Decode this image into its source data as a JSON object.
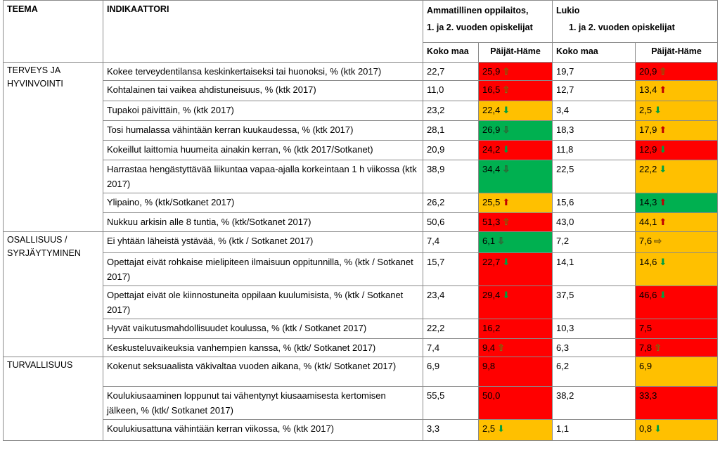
{
  "header": {
    "teema": "TEEMA",
    "indikaattori": "INDIKAATTORI",
    "ammatillinen": "Ammatillinen oppilaitos,",
    "ammatillinen_sub": "1. ja 2. vuoden opiskelijat",
    "lukio": "Lukio",
    "lukio_sub": "1. ja 2. vuoden opiskelijat",
    "koko_maa": "Koko maa",
    "paijat_hame": "Päijät-Häme"
  },
  "arrows": {
    "up": "⇧",
    "down": "⇩",
    "right": "⇨",
    "up_filled": "⬆",
    "down_filled": "⬇"
  },
  "themes": [
    {
      "name_line1": "TERVEYS JA",
      "name_line2": "HYVINVOINTI",
      "rows": [
        {
          "indicator": "Kokee terveydentilansa keskinkertaiseksi tai huonoksi, % (ktk 2017)",
          "amm_maa": "22,7",
          "amm_ph": "25,9",
          "amm_color": "red",
          "amm_arrow": "up",
          "luk_maa": "19,7",
          "luk_ph": "20,9",
          "luk_color": "red",
          "luk_arrow": "up"
        },
        {
          "indicator": "Kohtalainen tai vaikea ahdistuneisuus, % (ktk 2017)",
          "amm_maa": "11,0",
          "amm_ph": "16,5",
          "amm_color": "red",
          "amm_arrow": "up",
          "luk_maa": "12,7",
          "luk_ph": "13,4",
          "luk_color": "orange",
          "luk_arrow": "up_filled"
        },
        {
          "indicator": "Tupakoi päivittäin, % (ktk 2017)",
          "amm_maa": "23,2",
          "amm_ph": "22,4",
          "amm_color": "orange",
          "amm_arrow": "down_filled",
          "luk_maa": "3,4",
          "luk_ph": "2,5",
          "luk_color": "orange",
          "luk_arrow": "down_filled"
        },
        {
          "indicator": "Tosi humalassa vähintään kerran kuukaudessa, % (ktk 2017)",
          "amm_maa": "28,1",
          "amm_ph": "26,9",
          "amm_color": "green",
          "amm_arrow": "down",
          "luk_maa": "18,3",
          "luk_ph": "17,9",
          "luk_color": "orange",
          "luk_arrow": "up_filled"
        },
        {
          "indicator": "Kokeillut laittomia huumeita ainakin kerran, % (ktk 2017/Sotkanet)",
          "amm_maa": "20,9",
          "amm_ph": "24,2",
          "amm_color": "red",
          "amm_arrow": "down_filled",
          "luk_maa": "11,8",
          "luk_ph": "12,9",
          "luk_color": "red",
          "luk_arrow": "down_filled"
        },
        {
          "indicator": "Harrastaa hengästyttävää liikuntaa vapaa-ajalla korkeintaan 1 h viikossa (ktk 2017)",
          "amm_maa": "38,9",
          "amm_ph": "34,4",
          "amm_color": "green",
          "amm_arrow": "down",
          "luk_maa": "22,5",
          "luk_ph": "22,2",
          "luk_color": "orange",
          "luk_arrow": "down_filled"
        },
        {
          "indicator": "Ylipaino, % (ktk/Sotkanet 2017)",
          "amm_maa": "26,2",
          "amm_ph": "25,5",
          "amm_color": "orange",
          "amm_arrow": "up_filled",
          "luk_maa": "15,6",
          "luk_ph": "14,3",
          "luk_color": "green",
          "luk_arrow": "up_filled"
        },
        {
          "indicator": "Nukkuu arkisin alle 8 tuntia, % (ktk/Sotkanet 2017)",
          "amm_maa": "50,6",
          "amm_ph": "51,3",
          "amm_color": "red",
          "amm_arrow": "up",
          "luk_maa": "43,0",
          "luk_ph": "44,1",
          "luk_color": "orange",
          "luk_arrow": "up_filled"
        }
      ]
    },
    {
      "name_line1": "OSALLISUUS /",
      "name_line2": "SYRJÄYTYMINEN",
      "rows": [
        {
          "indicator": "Ei yhtään läheistä ystävää, % (ktk / Sotkanet 2017)",
          "amm_maa": "7,4",
          "amm_ph": "6,1",
          "amm_color": "green",
          "amm_arrow": "down",
          "luk_maa": "7,2",
          "luk_ph": "7,6",
          "luk_color": "orange",
          "luk_arrow": "right"
        },
        {
          "indicator": "Opettajat eivät rohkaise mielipiteen ilmaisuun oppitunnilla, % (ktk / Sotkanet 2017)",
          "amm_maa": "15,7",
          "amm_ph": "22,7",
          "amm_color": "red",
          "amm_arrow": "down_filled",
          "luk_maa": "14,1",
          "luk_ph": "14,6",
          "luk_color": "orange",
          "luk_arrow": "down_filled"
        },
        {
          "indicator": "Opettajat eivät ole kiinnostuneita oppilaan kuulumisista, % (ktk / Sotkanet 2017)",
          "amm_maa": "23,4",
          "amm_ph": "29,4",
          "amm_color": "red",
          "amm_arrow": "down_filled",
          "luk_maa": "37,5",
          "luk_ph": "46,6",
          "luk_color": "red",
          "luk_arrow": "down_filled"
        },
        {
          "indicator": "Hyvät vaikutusmahdollisuudet koulussa, % (ktk / Sotkanet 2017)",
          "amm_maa": "22,2",
          "amm_ph": "16,2",
          "amm_color": "red",
          "amm_arrow": "",
          "luk_maa": "10,3",
          "luk_ph": "7,5",
          "luk_color": "red",
          "luk_arrow": ""
        },
        {
          "indicator": "Keskusteluvaikeuksia vanhempien kanssa, % (ktk/ Sotkanet 2017)",
          "amm_maa": "7,4",
          "amm_ph": "9,4",
          "amm_color": "red",
          "amm_arrow": "up",
          "luk_maa": "6,3",
          "luk_ph": "7,8",
          "luk_color": "red",
          "luk_arrow": "up"
        }
      ]
    },
    {
      "name_line1": "TURVALLISUUS",
      "name_line2": "",
      "rows": [
        {
          "indicator": "Kokenut seksuaalista väkivaltaa vuoden aikana, % (ktk/ Sotkanet 2017)",
          "amm_maa": "6,9",
          "amm_ph": "9,8",
          "amm_color": "red",
          "amm_arrow": "",
          "luk_maa": "6,2",
          "luk_ph": "6,9",
          "luk_color": "orange",
          "luk_arrow": ""
        },
        {
          "indicator": "Koulukiusaaminen loppunut tai vähentynyt kiusaamisesta kertomisen jälkeen, % (ktk/ Sotkanet 2017)",
          "amm_maa": "55,5",
          "amm_ph": "50,0",
          "amm_color": "red",
          "amm_arrow": "",
          "luk_maa": "38,2",
          "luk_ph": "33,3",
          "luk_color": "red",
          "luk_arrow": ""
        },
        {
          "indicator": "Koulukiusattuna vähintään kerran viikossa, % (ktk 2017)",
          "amm_maa": "3,3",
          "amm_ph": "2,5",
          "amm_color": "orange",
          "amm_arrow": "down_filled",
          "luk_maa": "1,1",
          "luk_ph": "0,8",
          "luk_color": "orange",
          "luk_arrow": "down_filled"
        }
      ]
    }
  ]
}
